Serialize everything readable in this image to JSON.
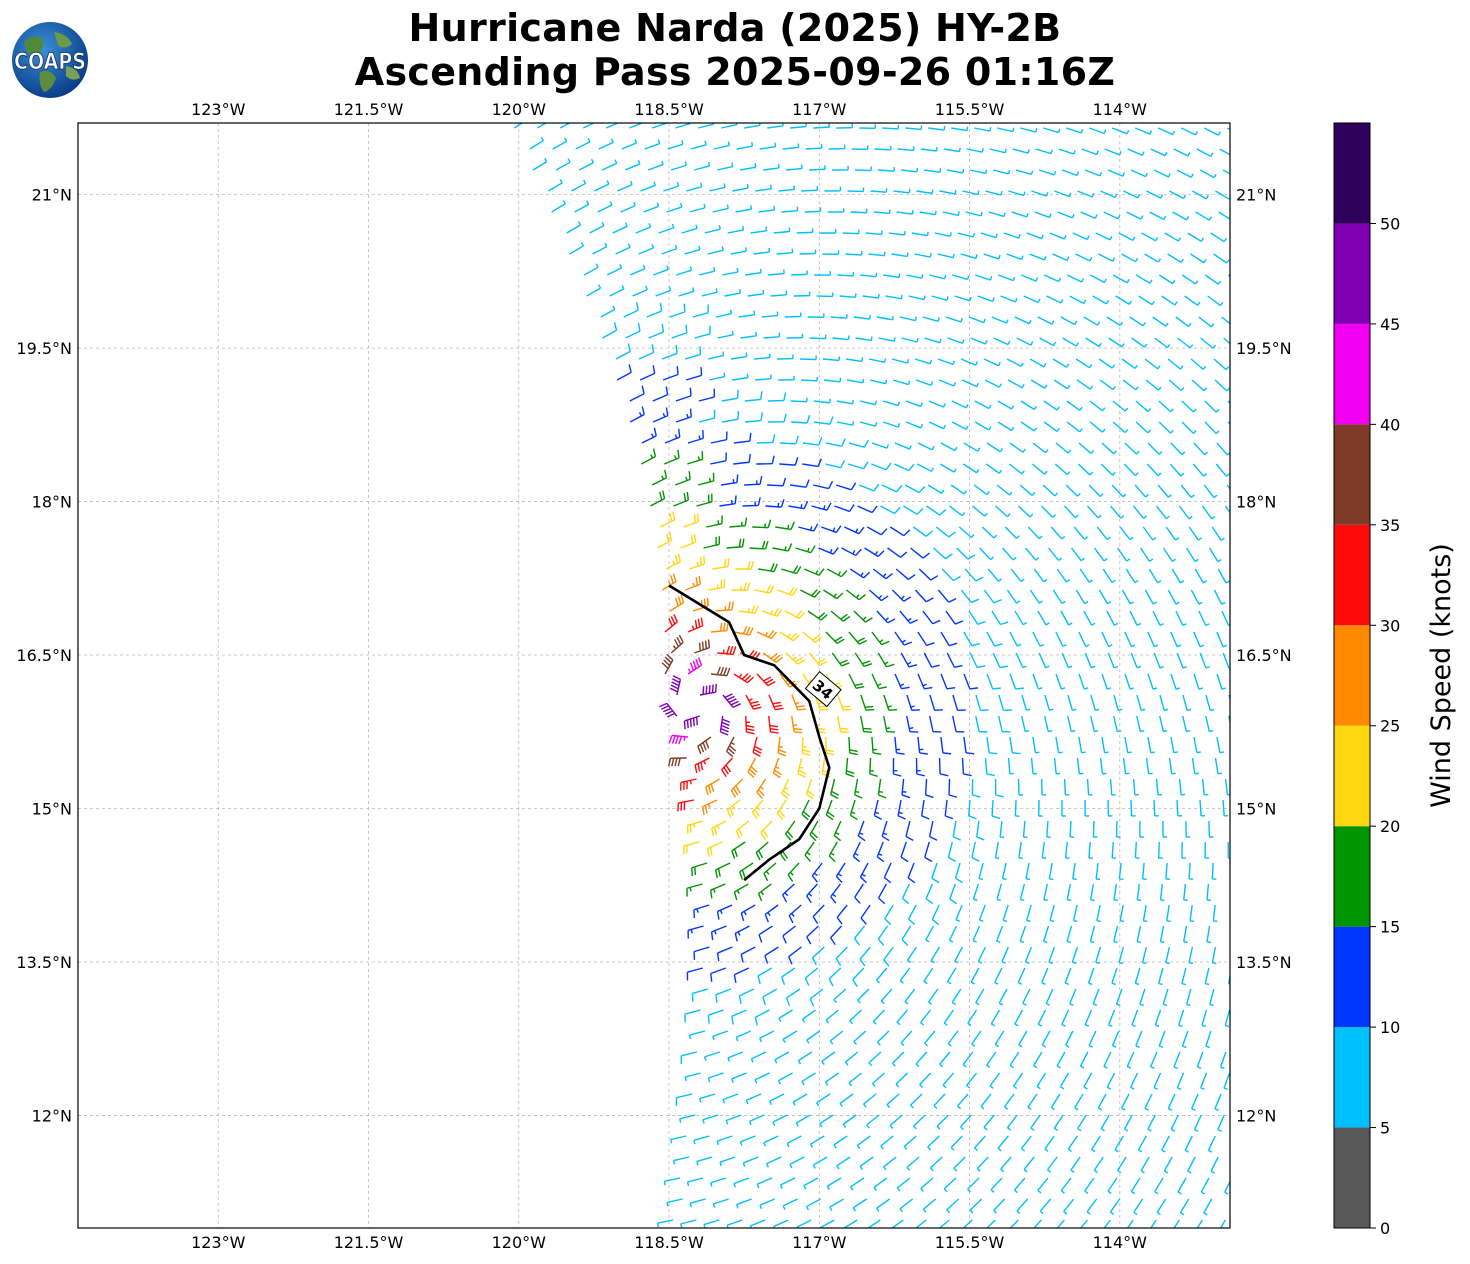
{
  "title": {
    "line1": "Hurricane Narda (2025) HY-2B",
    "line2": "Ascending Pass 2025-09-26 01:16Z"
  },
  "logo": {
    "text": "COAPS",
    "icon": "globe-icon"
  },
  "chart_data": {
    "type": "wind-barb-map",
    "lon_range": [
      -124.4,
      -112.9
    ],
    "lat_range": [
      10.9,
      21.7
    ],
    "lon_ticks": [
      {
        "value": -123,
        "label": "123°W"
      },
      {
        "value": -121.5,
        "label": "121.5°W"
      },
      {
        "value": -120,
        "label": "120°W"
      },
      {
        "value": -118.5,
        "label": "118.5°W"
      },
      {
        "value": -117,
        "label": "117°W"
      },
      {
        "value": -115.5,
        "label": "115.5°W"
      },
      {
        "value": -114,
        "label": "114°W"
      }
    ],
    "lat_ticks": [
      {
        "value": 21,
        "label": "21°N"
      },
      {
        "value": 19.5,
        "label": "19.5°N"
      },
      {
        "value": 18,
        "label": "18°N"
      },
      {
        "value": 16.5,
        "label": "16.5°N"
      },
      {
        "value": 15,
        "label": "15°N"
      },
      {
        "value": 13.5,
        "label": "13.5°N"
      },
      {
        "value": 12,
        "label": "12°N"
      }
    ],
    "grid": true,
    "storm_center": {
      "lon": -118.2,
      "lat": 16.0
    },
    "contour": {
      "label": "34",
      "points": [
        [
          -118.5,
          17.18
        ],
        [
          -118.2,
          17.0
        ],
        [
          -117.9,
          16.82
        ],
        [
          -117.75,
          16.5
        ],
        [
          -117.45,
          16.4
        ],
        [
          -117.1,
          16.05
        ],
        [
          -117.0,
          15.7
        ],
        [
          -116.9,
          15.4
        ],
        [
          -117.0,
          15.0
        ],
        [
          -117.2,
          14.7
        ],
        [
          -117.5,
          14.5
        ],
        [
          -117.75,
          14.3
        ]
      ]
    },
    "colorbar": {
      "label": "Wind Speed (knots)",
      "ticks": [
        0,
        5,
        10,
        15,
        20,
        25,
        30,
        35,
        40,
        45,
        50
      ],
      "bins": [
        {
          "min": 0,
          "max": 5,
          "color": "#595959"
        },
        {
          "min": 5,
          "max": 10,
          "color": "#00bfff"
        },
        {
          "min": 10,
          "max": 15,
          "color": "#0037ff"
        },
        {
          "min": 15,
          "max": 20,
          "color": "#009500"
        },
        {
          "min": 20,
          "max": 25,
          "color": "#ffd60f"
        },
        {
          "min": 25,
          "max": 30,
          "color": "#ff8a00"
        },
        {
          "min": 30,
          "max": 35,
          "color": "#ff0a0a"
        },
        {
          "min": 35,
          "max": 40,
          "color": "#7f3a28"
        },
        {
          "min": 40,
          "max": 45,
          "color": "#f200f2"
        },
        {
          "min": 45,
          "max": 50,
          "color": "#8100b3"
        },
        {
          "min": 50,
          "max": 55,
          "color": "#2e005c"
        }
      ]
    }
  }
}
